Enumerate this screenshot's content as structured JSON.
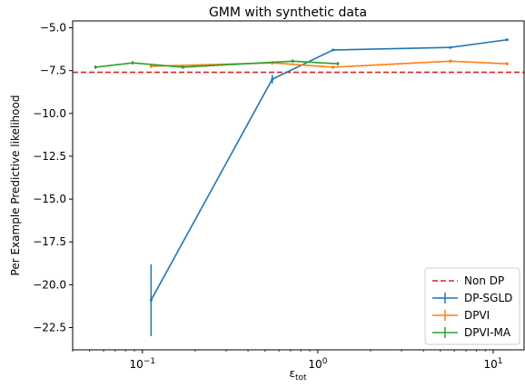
{
  "chart_data": {
    "type": "line",
    "title": "GMM with synthetic data",
    "xlabel": "ε",
    "xlabel_sub": "tot",
    "ylabel": "Per Example Predictive likelihood",
    "xscale": "log",
    "xlim": [
      0.04,
      15
    ],
    "ylim": [
      -23.8,
      -4.6
    ],
    "xticks": [
      {
        "value": 0.1,
        "base": "10",
        "exp": "−1"
      },
      {
        "value": 1,
        "base": "10",
        "exp": "0"
      },
      {
        "value": 10,
        "base": "10",
        "exp": "1"
      }
    ],
    "yticks": [
      {
        "value": -5.0,
        "label": "−5.0"
      },
      {
        "value": -7.5,
        "label": "−7.5"
      },
      {
        "value": -10.0,
        "label": "−10.0"
      },
      {
        "value": -12.5,
        "label": "−12.5"
      },
      {
        "value": -15.0,
        "label": "−15.0"
      },
      {
        "value": -17.5,
        "label": "−17.5"
      },
      {
        "value": -20.0,
        "label": "−20.0"
      },
      {
        "value": -22.5,
        "label": "−22.5"
      }
    ],
    "grid": false,
    "legend_position": "bottom-right",
    "baseline": {
      "name": "Non DP",
      "y": -7.6,
      "color": "#d62728",
      "style": "dashed"
    },
    "series": [
      {
        "name": "DP-SGLD",
        "color": "#1f77b4",
        "x": [
          0.112,
          0.55,
          1.22,
          5.7,
          12.0
        ],
        "y": [
          -20.9,
          -8.0,
          -6.3,
          -6.15,
          -5.7
        ],
        "err": [
          2.1,
          0.25,
          0.05,
          0.05,
          0.05
        ]
      },
      {
        "name": "DPVI",
        "color": "#ff7f0e",
        "x": [
          0.112,
          0.55,
          1.22,
          5.7,
          12.0
        ],
        "y": [
          -7.25,
          -7.05,
          -7.3,
          -6.95,
          -7.1
        ],
        "err": [
          0.1,
          0.1,
          0.1,
          0.1,
          0.1
        ]
      },
      {
        "name": "DPVI-MA",
        "color": "#2ca02c",
        "x": [
          0.054,
          0.088,
          0.17,
          0.72,
          1.3
        ],
        "y": [
          -7.3,
          -7.05,
          -7.3,
          -6.95,
          -7.1
        ],
        "err": [
          0.1,
          0.1,
          0.1,
          0.1,
          0.1
        ]
      }
    ]
  }
}
